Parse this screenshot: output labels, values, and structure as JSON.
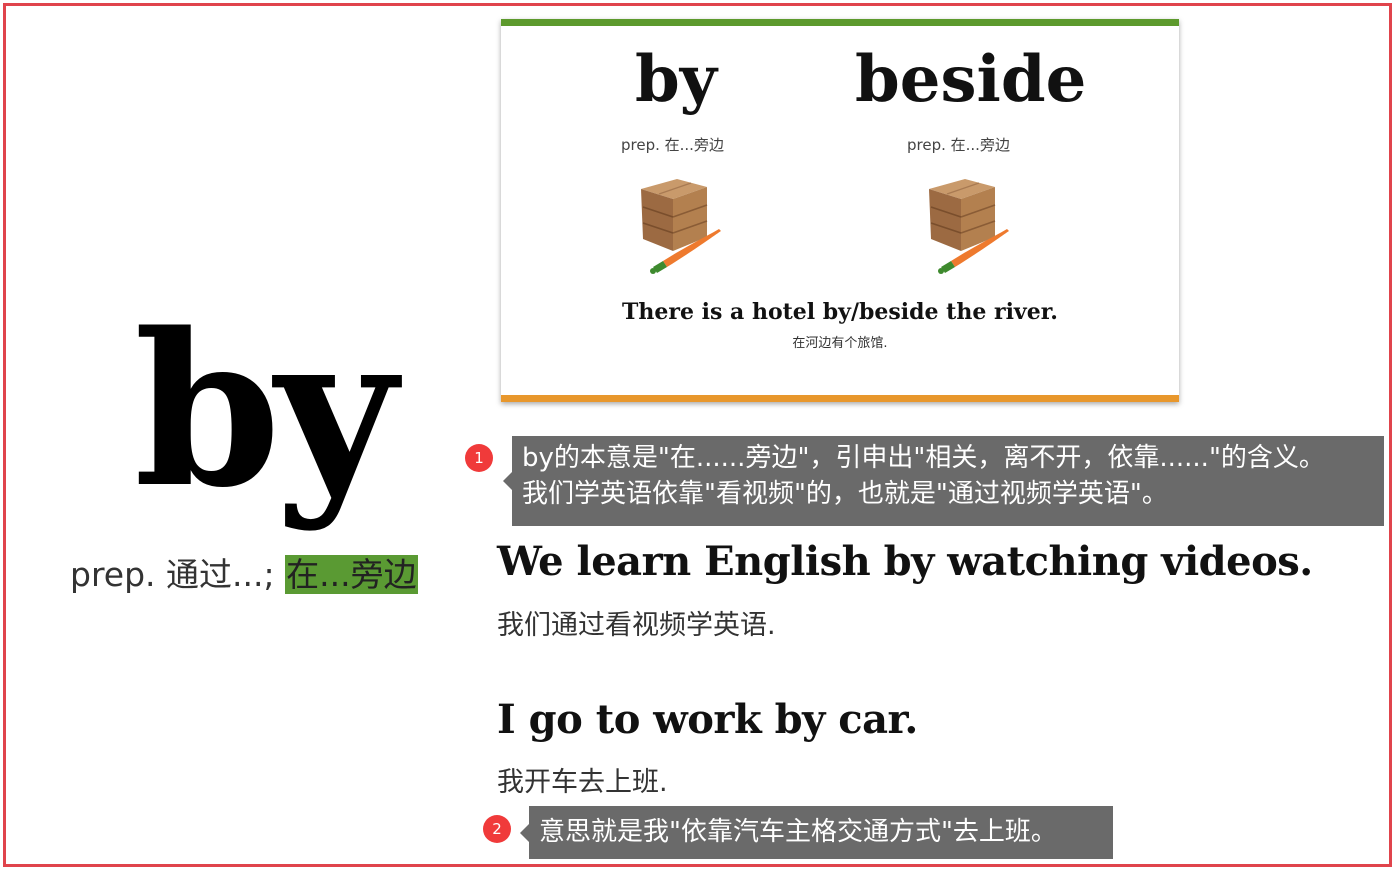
{
  "main_word": {
    "word": "by",
    "def_prefix": "prep. 通过...; ",
    "def_highlight": "在...旁边"
  },
  "card": {
    "word_left": "by",
    "def_left": "prep. 在...旁边",
    "word_right": "beside",
    "def_right": "prep. 在...旁边",
    "sentence": "There is a hotel by/beside the river.",
    "sentence_cn": "在河边有个旅馆.",
    "colors": {
      "top_bar": "#5d9a2d",
      "bottom_bar": "#e8972c"
    }
  },
  "annotations": [
    {
      "number": "1",
      "line1": "by的本意是\"在......旁边\"，引申出\"相关，离不开，依靠......\"的含义。",
      "line2": "我们学英语依靠\"看视频\"的，也就是\"通过视频学英语\"。"
    },
    {
      "number": "2",
      "line1": "意思就是我\"依靠汽车主格交通方式\"去上班。"
    }
  ],
  "examples": [
    {
      "en": "We learn English by watching videos.",
      "cn": "我们通过看视频学英语."
    },
    {
      "en": "I go to work by car.",
      "cn": "我开车去上班."
    }
  ],
  "colors": {
    "frame": "#e0444c",
    "highlight": "#5a9a33",
    "badge": "#f03a3a",
    "note_bg": "#6a6a6a"
  }
}
